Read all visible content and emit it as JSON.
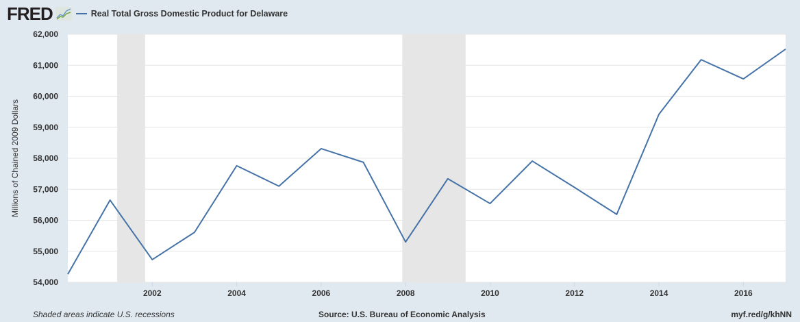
{
  "header": {
    "logo": "FRED",
    "legend_label": "Real Total Gross Domestic Product for Delaware",
    "series_color": "#4572a7"
  },
  "footer": {
    "note": "Shaded areas indicate U.S. recessions",
    "source": "Source: U.S. Bureau of Economic Analysis",
    "link": "myf.red/g/khNN"
  },
  "chart_data": {
    "type": "line",
    "title": "",
    "xlabel": "",
    "ylabel": "Millions of Chained 2009 Dollars",
    "xlim": [
      2000,
      2017
    ],
    "ylim": [
      54000,
      62000
    ],
    "grid": true,
    "legend": "top-left",
    "x_ticks": [
      "2002",
      "2004",
      "2006",
      "2008",
      "2010",
      "2012",
      "2014",
      "2016"
    ],
    "y_ticks": [
      "54,000",
      "55,000",
      "56,000",
      "57,000",
      "58,000",
      "59,000",
      "60,000",
      "61,000",
      "62,000"
    ],
    "recessions": [
      [
        2001.17,
        2001.83
      ],
      [
        2007.92,
        2009.42
      ]
    ],
    "series": [
      {
        "name": "Real Total Gross Domestic Product for Delaware",
        "x": [
          2000,
          2001,
          2002,
          2003,
          2004,
          2005,
          2006,
          2007,
          2008,
          2009,
          2010,
          2011,
          2012,
          2013,
          2014,
          2015,
          2016,
          2017
        ],
        "values": [
          54260,
          56650,
          54730,
          55610,
          57760,
          57100,
          58310,
          57870,
          55300,
          57340,
          56540,
          57910,
          57060,
          56190,
          59420,
          61180,
          60560,
          61520
        ]
      }
    ]
  }
}
